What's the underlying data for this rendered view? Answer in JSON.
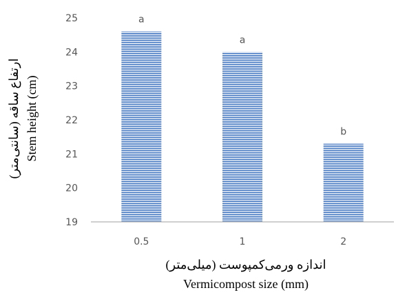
{
  "chart_data": {
    "type": "bar",
    "categories": [
      "0.5",
      "1",
      "2"
    ],
    "values": [
      24.6,
      24.0,
      21.3
    ],
    "significance_labels": [
      "a",
      "a",
      "b"
    ],
    "xlabel_fa": "اندازه ورمی‌کمپوست (میلی‌متر)",
    "xlabel_en": "Vermicompost size (mm)",
    "ylabel_fa": "ارتفاع ساقه (سانتی‌متر)",
    "ylabel_en": "Stem height (cm)",
    "ylim": [
      19,
      25
    ],
    "yticks": [
      "19",
      "20",
      "21",
      "22",
      "23",
      "24",
      "25"
    ],
    "grid": false,
    "colors": {
      "bar_stripe": "#4f7fc4",
      "bar_background": "#ffffff",
      "axis": "#bfbfbf"
    }
  }
}
